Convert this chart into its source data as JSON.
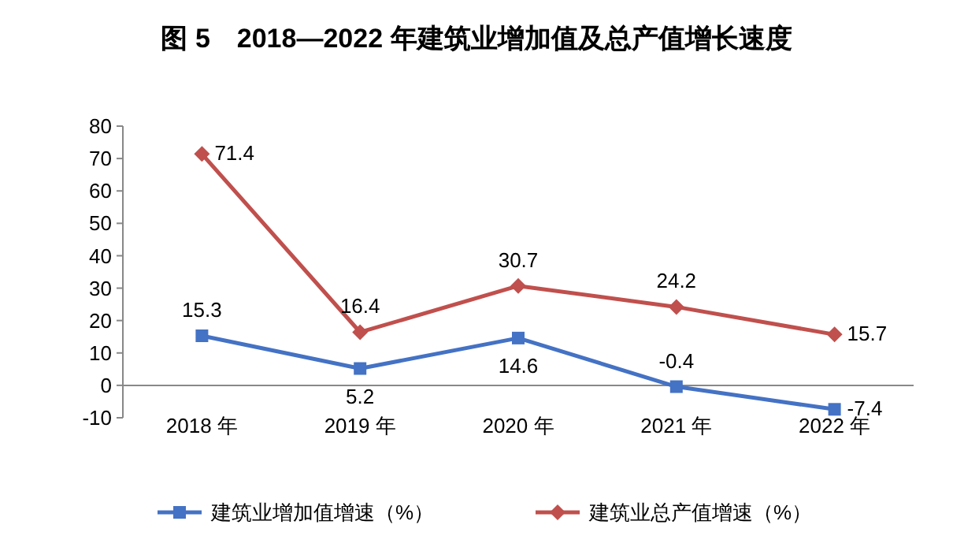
{
  "chart_data": {
    "type": "line",
    "title": "图 5　2018—2022 年建筑业增加值及总产值增长速度",
    "categories": [
      "2018 年",
      "2019 年",
      "2020 年",
      "2021 年",
      "2022 年"
    ],
    "series": [
      {
        "name": "建筑业增加值增速（%）",
        "color": "#4472c4",
        "marker": "square",
        "values": [
          15.3,
          5.2,
          14.6,
          -0.4,
          -7.4
        ]
      },
      {
        "name": "建筑业总产值增速（%）",
        "color": "#c0504d",
        "marker": "diamond",
        "values": [
          71.4,
          16.4,
          30.7,
          24.2,
          15.7
        ]
      }
    ],
    "ylim": [
      -10,
      80
    ],
    "yticks": [
      -10,
      0,
      10,
      20,
      30,
      40,
      50,
      60,
      70,
      80
    ],
    "data_labels": true,
    "grid": false,
    "legend": "bottom"
  }
}
